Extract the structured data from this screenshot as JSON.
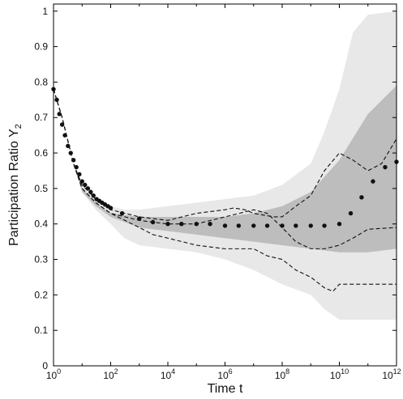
{
  "chart_data": {
    "type": "line",
    "title": "",
    "xlabel": "Time t",
    "ylabel": {
      "main": "Participation Ratio Y",
      "subscript": "2"
    },
    "x_scale": "log",
    "x_range": [
      1,
      1000000000000
    ],
    "y_range": [
      0,
      1.02
    ],
    "grid": false,
    "legend": "none",
    "x_ticks": [
      {
        "value": 1,
        "base": "10",
        "exp": "0"
      },
      {
        "value": 100,
        "base": "10",
        "exp": "2"
      },
      {
        "value": 10000,
        "base": "10",
        "exp": "4"
      },
      {
        "value": 1000000,
        "base": "10",
        "exp": "6"
      },
      {
        "value": 100000000,
        "base": "10",
        "exp": "8"
      },
      {
        "value": 10000000000,
        "base": "10",
        "exp": "10"
      },
      {
        "value": 1000000000000,
        "base": "10",
        "exp": "12"
      }
    ],
    "y_ticks": [
      {
        "value": 0,
        "label": "0"
      },
      {
        "value": 0.1,
        "label": "0.1"
      },
      {
        "value": 0.2,
        "label": "0.2"
      },
      {
        "value": 0.3,
        "label": "0.3"
      },
      {
        "value": 0.4,
        "label": "0.4"
      },
      {
        "value": 0.5,
        "label": "0.5"
      },
      {
        "value": 0.6,
        "label": "0.6"
      },
      {
        "value": 0.7,
        "label": "0.7"
      },
      {
        "value": 0.8,
        "label": "0.8"
      },
      {
        "value": 0.9,
        "label": "0.9"
      },
      {
        "value": 1,
        "label": "1"
      }
    ],
    "colors": {
      "outer_band": "#e8e8e8",
      "inner_band": "#bdbdbd",
      "mean_dots": "#111111",
      "dashed_lines": "#111111"
    },
    "outer_band": {
      "x": [
        1,
        1.5,
        2,
        3,
        5,
        10,
        30,
        100,
        300,
        1000,
        10000,
        100000,
        1000000,
        10000000,
        100000000,
        1000000000,
        3000000000,
        10000000000,
        30000000000,
        100000000000,
        1000000000000
      ],
      "upper": [
        0.78,
        0.74,
        0.7,
        0.63,
        0.57,
        0.51,
        0.47,
        0.45,
        0.44,
        0.44,
        0.45,
        0.46,
        0.47,
        0.48,
        0.51,
        0.57,
        0.66,
        0.78,
        0.94,
        0.99,
        1.0
      ],
      "lower": [
        0.78,
        0.74,
        0.7,
        0.63,
        0.57,
        0.49,
        0.44,
        0.4,
        0.36,
        0.34,
        0.33,
        0.32,
        0.3,
        0.27,
        0.23,
        0.2,
        0.16,
        0.13,
        0.13,
        0.13,
        0.13
      ]
    },
    "inner_band": {
      "x": [
        1,
        1.5,
        2,
        3,
        5,
        10,
        30,
        100,
        1000,
        10000,
        100000,
        1000000,
        10000000,
        100000000,
        1000000000,
        10000000000,
        100000000000,
        1000000000000
      ],
      "upper": [
        0.78,
        0.74,
        0.7,
        0.63,
        0.57,
        0.5,
        0.46,
        0.43,
        0.42,
        0.42,
        0.42,
        0.42,
        0.43,
        0.45,
        0.49,
        0.58,
        0.71,
        0.79
      ],
      "lower": [
        0.78,
        0.74,
        0.7,
        0.63,
        0.57,
        0.49,
        0.45,
        0.42,
        0.39,
        0.38,
        0.37,
        0.36,
        0.35,
        0.34,
        0.33,
        0.32,
        0.32,
        0.33
      ]
    },
    "series": [
      {
        "style": "dots",
        "x": [
          1,
          1.3,
          1.6,
          2,
          2.5,
          3.2,
          4,
          5,
          6.3,
          8,
          10,
          12.6,
          16,
          20,
          25,
          32,
          40,
          50,
          63,
          80,
          100,
          250,
          1000,
          3000,
          10000,
          30000,
          100000,
          300000,
          1000000,
          3000000,
          10000000,
          30000000,
          100000000,
          300000000,
          1000000000,
          3000000000,
          10000000000,
          25000000000,
          60000000000,
          150000000000,
          400000000000,
          1000000000000
        ],
        "y": [
          0.78,
          0.75,
          0.71,
          0.68,
          0.65,
          0.62,
          0.6,
          0.58,
          0.56,
          0.54,
          0.52,
          0.51,
          0.5,
          0.49,
          0.48,
          0.47,
          0.465,
          0.46,
          0.455,
          0.45,
          0.445,
          0.43,
          0.415,
          0.405,
          0.4,
          0.4,
          0.4,
          0.4,
          0.395,
          0.395,
          0.395,
          0.395,
          0.395,
          0.395,
          0.395,
          0.395,
          0.4,
          0.43,
          0.475,
          0.52,
          0.56,
          0.575
        ]
      },
      {
        "style": "dashed",
        "x": [
          1,
          2,
          5,
          10,
          30,
          100,
          1000,
          10000,
          100000,
          1000000,
          2000000,
          5000000,
          10000000,
          50000000,
          100000000,
          300000000,
          1000000000,
          3000000000,
          10000000000,
          30000000000,
          100000000000,
          300000000000,
          1000000000000
        ],
        "y": [
          0.78,
          0.7,
          0.57,
          0.51,
          0.47,
          0.44,
          0.42,
          0.41,
          0.43,
          0.44,
          0.445,
          0.44,
          0.43,
          0.42,
          0.42,
          0.45,
          0.48,
          0.55,
          0.6,
          0.58,
          0.55,
          0.57,
          0.64
        ]
      },
      {
        "style": "dashed",
        "x": [
          1,
          2,
          5,
          10,
          30,
          100,
          1000,
          10000,
          100000,
          1000000,
          10000000,
          30000000,
          100000000,
          300000000,
          1000000000,
          3000000000,
          10000000000,
          30000000000,
          100000000000,
          1000000000000
        ],
        "y": [
          0.78,
          0.7,
          0.57,
          0.5,
          0.46,
          0.43,
          0.41,
          0.4,
          0.4,
          0.42,
          0.44,
          0.43,
          0.39,
          0.35,
          0.33,
          0.33,
          0.34,
          0.36,
          0.385,
          0.39
        ]
      },
      {
        "style": "dashed",
        "x": [
          1,
          2,
          5,
          10,
          30,
          100,
          1000,
          3000,
          10000,
          100000,
          1000000,
          10000000,
          30000000,
          100000000,
          300000000,
          1000000000,
          3000000000,
          6000000000,
          10000000000,
          100000000000,
          1000000000000
        ],
        "y": [
          0.78,
          0.7,
          0.57,
          0.5,
          0.46,
          0.43,
          0.39,
          0.37,
          0.36,
          0.34,
          0.33,
          0.33,
          0.31,
          0.3,
          0.27,
          0.25,
          0.22,
          0.21,
          0.23,
          0.23,
          0.23
        ]
      }
    ]
  }
}
